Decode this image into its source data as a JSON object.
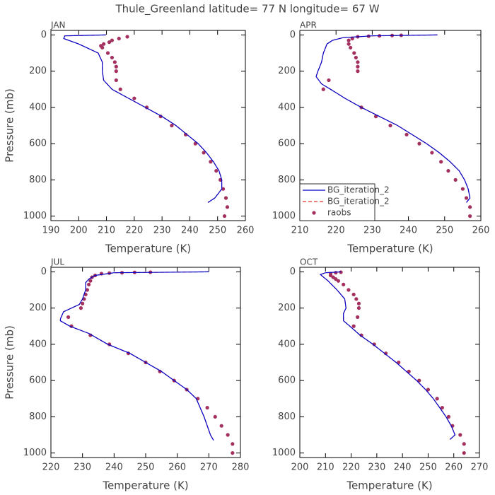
{
  "title": "Thule_Greenland  latitude= 77 N longitude= 67 W",
  "chart_data": [
    {
      "type": "line",
      "title": "JAN",
      "x_label": "Temperature (K)",
      "y_label": "Pressure (mb)",
      "xlim": [
        190,
        260
      ],
      "xticks": [
        190,
        200,
        210,
        220,
        230,
        240,
        250,
        260
      ],
      "ylim": [
        1025,
        -25
      ],
      "yticks": [
        0,
        200,
        400,
        600,
        800,
        1000
      ],
      "series": [
        {
          "color": "#0000c8",
          "style": "solid",
          "x": [
            209.8,
            195,
            194.6,
            200,
            207,
            208.5,
            208.5,
            209,
            212,
            218,
            224,
            230,
            235,
            239,
            243,
            246,
            248.5,
            250.5,
            251.5,
            251.5,
            249,
            246.5
          ],
          "y": [
            0,
            5,
            20,
            50,
            100,
            150,
            200,
            250,
            300,
            350,
            400,
            450,
            500,
            550,
            600,
            650,
            700,
            750,
            800,
            850,
            900,
            925
          ]
        },
        {
          "color": "#e03030",
          "style": "dashed",
          "x": [
            209.8,
            195,
            194.6,
            200,
            207,
            208.5,
            208.5,
            209,
            212,
            218,
            224,
            230,
            235,
            239,
            243,
            246,
            248.5,
            250.5,
            251.5,
            251.5,
            249,
            246.5
          ],
          "y": [
            0,
            5,
            20,
            50,
            100,
            150,
            200,
            250,
            300,
            350,
            400,
            450,
            500,
            550,
            600,
            650,
            700,
            750,
            800,
            850,
            900,
            925
          ]
        },
        {
          "color": "#a3305e",
          "style": "dots",
          "x": [
            217.5,
            214.5,
            212,
            211,
            209,
            208,
            208.5,
            210.5,
            212,
            213,
            213.5,
            213.5,
            213.5,
            215,
            220,
            224.5,
            229.5,
            233.5,
            238.5,
            242,
            245,
            247.5,
            249.5,
            251,
            252,
            253,
            253.5,
            252.5
          ],
          "y": [
            10,
            20,
            30,
            40,
            50,
            60,
            70,
            100,
            125,
            150,
            175,
            200,
            250,
            300,
            350,
            400,
            450,
            500,
            550,
            600,
            650,
            700,
            750,
            800,
            850,
            900,
            950,
            1000
          ]
        }
      ]
    },
    {
      "type": "line",
      "title": "APR",
      "x_label": "Temperature (K)",
      "legend": "lower left",
      "xlim": [
        210,
        260
      ],
      "xticks": [
        210,
        220,
        230,
        240,
        250,
        260
      ],
      "ylim": [
        1025,
        -25
      ],
      "yticks": [
        0,
        200,
        400,
        600,
        800,
        1000
      ],
      "series": [
        {
          "name": "BG_iteration_2",
          "color": "#0000c8",
          "style": "solid",
          "x": [
            248,
            230,
            222,
            219,
            217.5,
            216.5,
            216,
            215,
            214.5,
            216,
            218.5,
            222.5,
            227,
            232,
            237,
            241,
            245,
            248.5,
            251.5,
            254,
            255.5,
            256.5,
            257,
            256
          ],
          "y": [
            0,
            5,
            15,
            30,
            50,
            100,
            150,
            200,
            230,
            270,
            300,
            350,
            400,
            450,
            500,
            550,
            600,
            650,
            700,
            750,
            800,
            850,
            900,
            925
          ]
        },
        {
          "name": "BG_iteration_2",
          "color": "#e03030",
          "style": "dashed",
          "x": [
            248,
            230,
            222,
            219,
            217.5,
            216.5,
            216,
            215,
            214.5,
            216,
            218.5,
            222.5,
            227,
            232,
            237,
            241,
            245,
            248.5,
            251.5,
            254,
            255.5,
            256.5,
            257,
            256
          ],
          "y": [
            0,
            5,
            15,
            30,
            50,
            100,
            150,
            200,
            230,
            270,
            300,
            350,
            400,
            450,
            500,
            550,
            600,
            650,
            700,
            750,
            800,
            850,
            900,
            925
          ]
        },
        {
          "name": "raobs",
          "color": "#a3305e",
          "style": "dots",
          "x": [
            238,
            235.5,
            232,
            229,
            226,
            224.5,
            223.5,
            223.5,
            224,
            225,
            225.5,
            226,
            226,
            226,
            218,
            216.5,
            227,
            231,
            235,
            239.5,
            243,
            246.5,
            249,
            251,
            253,
            255,
            256,
            257,
            257
          ],
          "y": [
            2,
            3,
            5,
            7,
            10,
            20,
            30,
            50,
            70,
            100,
            125,
            150,
            175,
            200,
            250,
            300,
            400,
            450,
            500,
            550,
            600,
            650,
            700,
            750,
            800,
            850,
            900,
            950,
            1000
          ]
        }
      ]
    },
    {
      "type": "line",
      "title": "JUL",
      "x_label": "Temperature (K)",
      "y_label": "Pressure (mb)",
      "xlim": [
        220,
        280
      ],
      "xticks": [
        220,
        230,
        240,
        250,
        260,
        270,
        280
      ],
      "ylim": [
        1025,
        -25
      ],
      "yticks": [
        0,
        200,
        400,
        600,
        800,
        1000
      ],
      "series": [
        {
          "color": "#0000c8",
          "style": "solid",
          "x": [
            270,
            240,
            234,
            232,
            231,
            231,
            230,
            229,
            224,
            223,
            223,
            226,
            232,
            238,
            245,
            250,
            255,
            259,
            263,
            266,
            268.5,
            270.5,
            271.5
          ],
          "y": [
            0,
            5,
            20,
            40,
            60,
            100,
            150,
            180,
            220,
            260,
            270,
            300,
            340,
            400,
            450,
            500,
            550,
            600,
            650,
            700,
            800,
            900,
            930
          ]
        },
        {
          "color": "#e03030",
          "style": "dashed",
          "x": [
            270,
            240,
            234,
            232,
            231,
            231,
            230,
            229,
            224,
            223,
            223,
            226,
            232,
            238,
            245,
            250,
            255,
            259,
            263,
            266,
            268.5,
            270.5,
            271.5
          ],
          "y": [
            0,
            5,
            20,
            40,
            60,
            100,
            150,
            180,
            220,
            260,
            270,
            300,
            340,
            400,
            450,
            500,
            550,
            600,
            650,
            700,
            800,
            900,
            930
          ]
        },
        {
          "color": "#a3305e",
          "style": "dots",
          "x": [
            251.5,
            246.5,
            242.5,
            238.5,
            236,
            234,
            233,
            232.5,
            232,
            231.5,
            231,
            230.5,
            230,
            229.5,
            225.5,
            226.5,
            232.5,
            238.5,
            244.5,
            250,
            254.5,
            259,
            263,
            266.5,
            269.5,
            272,
            274,
            276,
            277.5,
            277.5
          ],
          "y": [
            2,
            3,
            5,
            7,
            10,
            20,
            30,
            50,
            70,
            100,
            125,
            150,
            175,
            200,
            250,
            300,
            350,
            400,
            450,
            500,
            550,
            600,
            650,
            700,
            750,
            800,
            850,
            900,
            950,
            1000
          ]
        }
      ]
    },
    {
      "type": "line",
      "title": "OCT",
      "x_label": "Temperature (K)",
      "xlim": [
        200,
        270
      ],
      "xticks": [
        200,
        210,
        220,
        230,
        240,
        250,
        260,
        270
      ],
      "ylim": [
        1025,
        -25
      ],
      "yticks": [
        0,
        200,
        400,
        600,
        800,
        1000
      ],
      "series": [
        {
          "color": "#0000c8",
          "style": "solid",
          "x": [
            216,
            210,
            208,
            211,
            214.5,
            217.5,
            218,
            217,
            217,
            219.5,
            223.5,
            228.5,
            233,
            237.5,
            241.5,
            245.5,
            249,
            252,
            254.5,
            257,
            259,
            260.5,
            258.5
          ],
          "y": [
            0,
            5,
            15,
            50,
            100,
            150,
            200,
            230,
            270,
            300,
            350,
            400,
            450,
            500,
            550,
            600,
            650,
            700,
            750,
            800,
            850,
            900,
            925
          ]
        },
        {
          "color": "#e03030",
          "style": "dashed",
          "x": [
            216,
            210,
            208,
            211,
            214.5,
            217.5,
            218,
            217,
            217,
            219.5,
            223.5,
            228.5,
            233,
            237.5,
            241.5,
            245.5,
            249,
            252,
            254.5,
            257,
            259,
            260.5,
            258.5
          ],
          "y": [
            0,
            5,
            15,
            50,
            100,
            150,
            200,
            230,
            270,
            300,
            350,
            400,
            450,
            500,
            550,
            600,
            650,
            700,
            750,
            800,
            850,
            900,
            925
          ]
        },
        {
          "color": "#a3305e",
          "style": "dots",
          "x": [
            216,
            214,
            212,
            212,
            213,
            214,
            215,
            217,
            219,
            221,
            222,
            223,
            223,
            222.5,
            221,
            224,
            229,
            233.5,
            238.5,
            242.5,
            246.5,
            250,
            253.5,
            255.5,
            258,
            259.5,
            262.5,
            264,
            264
          ],
          "y": [
            2,
            5,
            10,
            20,
            30,
            40,
            50,
            70,
            100,
            125,
            150,
            175,
            200,
            250,
            300,
            350,
            400,
            450,
            500,
            550,
            600,
            650,
            700,
            750,
            800,
            850,
            900,
            950,
            1000
          ]
        }
      ]
    }
  ]
}
